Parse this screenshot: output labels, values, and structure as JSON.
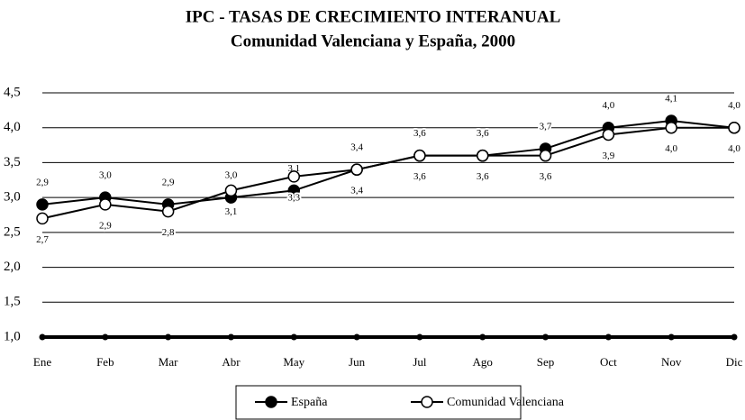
{
  "chart_data": {
    "type": "line",
    "title": "IPC - TASAS DE CRECIMIENTO INTERANUAL",
    "subtitle": "Comunidad Valenciana y España, 2000",
    "categories": [
      "Ene",
      "Feb",
      "Mar",
      "Abr",
      "May",
      "Jun",
      "Jul",
      "Ago",
      "Sep",
      "Oct",
      "Nov",
      "Dic"
    ],
    "series": [
      {
        "name": "España",
        "color": "#000000",
        "marker_fill": "#000000",
        "values": [
          2.9,
          3.0,
          2.9,
          3.0,
          3.1,
          3.4,
          3.6,
          3.6,
          3.7,
          4.0,
          4.1,
          4.0
        ],
        "value_labels": [
          "2,9",
          "3,0",
          "2,9",
          "3,0",
          "3,1",
          "3,4",
          "3,6",
          "3,6",
          "3,7",
          "4,0",
          "4,1",
          "4,0"
        ]
      },
      {
        "name": "Comunidad Valenciana",
        "color": "#000000",
        "marker_fill": "#ffffff",
        "values": [
          2.7,
          2.9,
          2.8,
          3.1,
          3.3,
          3.4,
          3.6,
          3.6,
          3.6,
          3.9,
          4.0,
          4.0
        ],
        "value_labels": [
          "2,7",
          "2,9",
          "2,8",
          "3,1",
          "3,3",
          "3,4",
          "3,6",
          "3,6",
          "3,6",
          "3,9",
          "4,0",
          "4,0"
        ]
      }
    ],
    "ylim": [
      1.0,
      4.5
    ],
    "yticks": [
      {
        "value": 1.0,
        "label": "1,0"
      },
      {
        "value": 1.5,
        "label": "1,5"
      },
      {
        "value": 2.0,
        "label": "2,0"
      },
      {
        "value": 2.5,
        "label": "2,5"
      },
      {
        "value": 3.0,
        "label": "3,0"
      },
      {
        "value": 3.5,
        "label": "3,5"
      },
      {
        "value": 4.0,
        "label": "4,0"
      },
      {
        "value": 4.5,
        "label": "4,5"
      }
    ],
    "grid": true,
    "legend": "bottom"
  }
}
